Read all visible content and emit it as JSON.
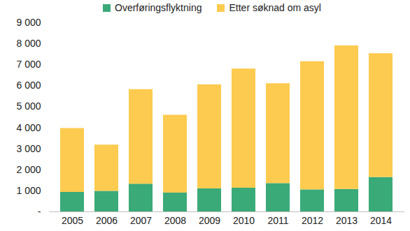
{
  "chart_data": {
    "type": "bar",
    "stacked": true,
    "grid": false,
    "legend": "top",
    "categories": [
      "2005",
      "2006",
      "2007",
      "2008",
      "2009",
      "2010",
      "2011",
      "2012",
      "2013",
      "2014"
    ],
    "series": [
      {
        "name": "Overføringsflyktning",
        "color": "#3aaa78",
        "values": [
          930,
          980,
          1320,
          900,
          1100,
          1130,
          1350,
          1050,
          1070,
          1640
        ]
      },
      {
        "name": "Etter søknad om asyl",
        "color": "#fdcb4f",
        "values": [
          3040,
          2200,
          4500,
          3700,
          4950,
          5670,
          4750,
          6100,
          6830,
          5890
        ]
      }
    ],
    "ylim": [
      0,
      9000
    ],
    "yticks": [
      {
        "value": 0,
        "label": "-"
      },
      {
        "value": 1000,
        "label": "1 000"
      },
      {
        "value": 2000,
        "label": "2 000"
      },
      {
        "value": 3000,
        "label": "3 000"
      },
      {
        "value": 4000,
        "label": "4 000"
      },
      {
        "value": 5000,
        "label": "5 000"
      },
      {
        "value": 6000,
        "label": "6 000"
      },
      {
        "value": 7000,
        "label": "7 000"
      },
      {
        "value": 8000,
        "label": "8 000"
      },
      {
        "value": 9000,
        "label": "9 000"
      }
    ]
  }
}
